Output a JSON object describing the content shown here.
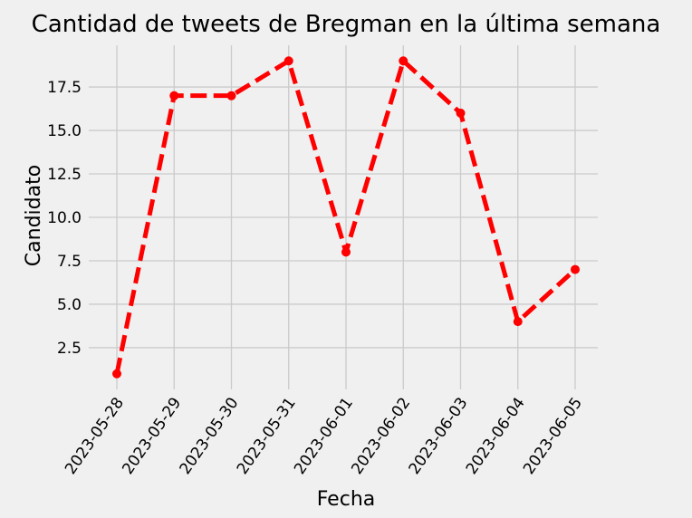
{
  "chart_data": {
    "type": "line",
    "title": "Cantidad de tweets de Bregman en la última semana",
    "xlabel": "Fecha",
    "ylabel": "Candidato",
    "x": [
      "2023-05-28",
      "2023-05-29",
      "2023-05-30",
      "2023-05-31",
      "2023-06-01",
      "2023-06-02",
      "2023-06-03",
      "2023-06-04",
      "2023-06-05"
    ],
    "series": [
      {
        "values": [
          1,
          17,
          17,
          19,
          8,
          19,
          16,
          4,
          7
        ],
        "color": "#ff0000"
      }
    ],
    "yticks": [
      "2.5",
      "5.0",
      "7.5",
      "10.0",
      "12.5",
      "15.0",
      "17.5"
    ],
    "ylim": [
      0.1,
      19.9
    ],
    "grid": true,
    "style": {
      "line": "dashed",
      "marker": "circle"
    },
    "colors": {
      "background": "#f0f0f0",
      "grid": "#cbcbcb"
    }
  }
}
